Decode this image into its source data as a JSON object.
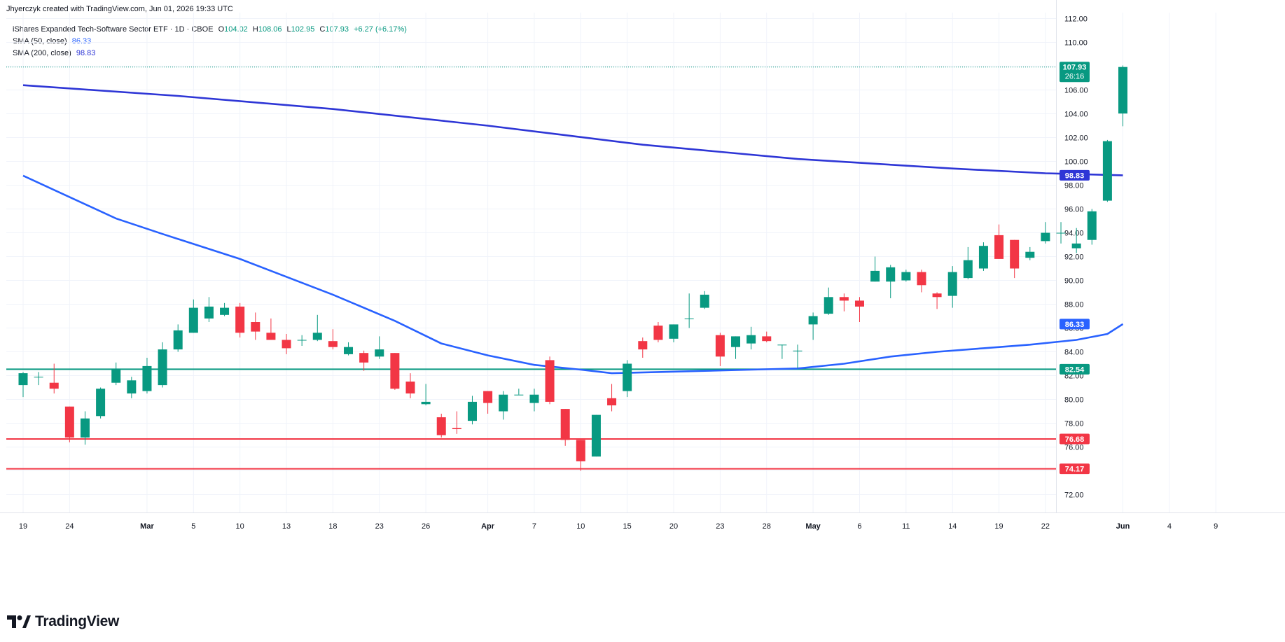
{
  "header": {
    "created_by": "Jhyerczyk created with TradingView.com, Jun 01, 2026 19:33 UTC"
  },
  "legend": {
    "symbol": "iShares Expanded Tech-Software Sector ETF · 1D · CBOE",
    "o_label": "O",
    "o_value": "104.02",
    "h_label": "H",
    "h_value": "108.06",
    "l_label": "L",
    "l_value": "102.95",
    "c_label": "C",
    "c_value": "107.93",
    "change": "+6.27 (+6.17%)",
    "sma50_label": "SMA (50, close)",
    "sma50_value": "86.33",
    "sma200_label": "SMA (200, close)",
    "sma200_value": "98.83"
  },
  "brand": {
    "name": "TradingView"
  },
  "colors": {
    "up": "#089981",
    "down": "#f23645",
    "sma50": "#2962ff",
    "sma200": "#2e36d6",
    "hline_green": "#089981",
    "hline_red": "#f23645",
    "grid": "#f0f3fa"
  },
  "chart_data": {
    "type": "candlestick",
    "ylim": [
      70.5,
      112.5
    ],
    "y_ticks": [
      "112.00",
      "110.00",
      "108.00",
      "106.00",
      "104.00",
      "102.00",
      "100.00",
      "98.00",
      "96.00",
      "94.00",
      "92.00",
      "90.00",
      "88.00",
      "86.00",
      "84.00",
      "82.00",
      "80.00",
      "78.00",
      "76.00",
      "74.00",
      "72.00"
    ],
    "x_ticks": [
      {
        "label": "19",
        "i": 0
      },
      {
        "label": "24",
        "i": 3
      },
      {
        "label": "Mar",
        "i": 8
      },
      {
        "label": "5",
        "i": 11
      },
      {
        "label": "10",
        "i": 14
      },
      {
        "label": "13",
        "i": 17
      },
      {
        "label": "18",
        "i": 20
      },
      {
        "label": "23",
        "i": 23
      },
      {
        "label": "26",
        "i": 26
      },
      {
        "label": "Apr",
        "i": 30
      },
      {
        "label": "7",
        "i": 33
      },
      {
        "label": "10",
        "i": 36
      },
      {
        "label": "15",
        "i": 39
      },
      {
        "label": "20",
        "i": 42
      },
      {
        "label": "23",
        "i": 45
      },
      {
        "label": "28",
        "i": 48
      },
      {
        "label": "May",
        "i": 51
      },
      {
        "label": "6",
        "i": 54
      },
      {
        "label": "11",
        "i": 57
      },
      {
        "label": "14",
        "i": 60
      },
      {
        "label": "19",
        "i": 63
      },
      {
        "label": "22",
        "i": 66
      },
      {
        "label": "Jun",
        "i": 71
      },
      {
        "label": "4",
        "i": 74
      },
      {
        "label": "9",
        "i": 77
      }
    ],
    "candles": [
      {
        "o": 81.2,
        "h": 82.3,
        "l": 80.2,
        "c": 82.2
      },
      {
        "o": 81.9,
        "h": 82.3,
        "l": 81.2,
        "c": 81.9
      },
      {
        "o": 81.4,
        "h": 83.0,
        "l": 80.5,
        "c": 80.9
      },
      {
        "o": 79.4,
        "h": 79.4,
        "l": 76.4,
        "c": 76.8
      },
      {
        "o": 76.8,
        "h": 79.0,
        "l": 76.2,
        "c": 78.4
      },
      {
        "o": 78.6,
        "h": 81.0,
        "l": 78.4,
        "c": 80.9
      },
      {
        "o": 81.4,
        "h": 83.1,
        "l": 81.2,
        "c": 82.5
      },
      {
        "o": 80.5,
        "h": 81.9,
        "l": 80.1,
        "c": 81.6
      },
      {
        "o": 80.7,
        "h": 83.5,
        "l": 80.5,
        "c": 82.8
      },
      {
        "o": 81.2,
        "h": 84.8,
        "l": 81.0,
        "c": 84.2
      },
      {
        "o": 84.2,
        "h": 86.3,
        "l": 84.0,
        "c": 85.8
      },
      {
        "o": 85.6,
        "h": 88.4,
        "l": 85.6,
        "c": 87.7
      },
      {
        "o": 86.8,
        "h": 88.6,
        "l": 86.5,
        "c": 87.8
      },
      {
        "o": 87.1,
        "h": 88.1,
        "l": 87.0,
        "c": 87.7
      },
      {
        "o": 87.8,
        "h": 88.1,
        "l": 85.2,
        "c": 85.6
      },
      {
        "o": 86.5,
        "h": 87.3,
        "l": 85.0,
        "c": 85.7
      },
      {
        "o": 85.6,
        "h": 86.8,
        "l": 85.0,
        "c": 85.0
      },
      {
        "o": 85.0,
        "h": 85.5,
        "l": 83.8,
        "c": 84.3
      },
      {
        "o": 85.0,
        "h": 85.4,
        "l": 84.5,
        "c": 85.0
      },
      {
        "o": 85.0,
        "h": 87.1,
        "l": 84.9,
        "c": 85.6
      },
      {
        "o": 84.9,
        "h": 85.9,
        "l": 84.2,
        "c": 84.4
      },
      {
        "o": 83.8,
        "h": 84.8,
        "l": 83.7,
        "c": 84.4
      },
      {
        "o": 83.9,
        "h": 84.1,
        "l": 82.4,
        "c": 83.1
      },
      {
        "o": 83.6,
        "h": 85.3,
        "l": 83.4,
        "c": 84.2
      },
      {
        "o": 83.9,
        "h": 83.9,
        "l": 80.8,
        "c": 80.9
      },
      {
        "o": 81.5,
        "h": 82.2,
        "l": 80.1,
        "c": 80.5
      },
      {
        "o": 79.6,
        "h": 81.3,
        "l": 79.5,
        "c": 79.8
      },
      {
        "o": 78.5,
        "h": 78.8,
        "l": 76.8,
        "c": 77.0
      },
      {
        "o": 77.6,
        "h": 79.0,
        "l": 77.1,
        "c": 77.5
      },
      {
        "o": 78.2,
        "h": 80.3,
        "l": 77.9,
        "c": 79.8
      },
      {
        "o": 80.7,
        "h": 80.7,
        "l": 78.8,
        "c": 79.7
      },
      {
        "o": 79.0,
        "h": 80.7,
        "l": 78.3,
        "c": 80.4
      },
      {
        "o": 80.4,
        "h": 80.9,
        "l": 80.4,
        "c": 80.4
      },
      {
        "o": 79.7,
        "h": 80.9,
        "l": 79.0,
        "c": 80.4
      },
      {
        "o": 83.3,
        "h": 83.6,
        "l": 79.6,
        "c": 79.8
      },
      {
        "o": 79.2,
        "h": 79.2,
        "l": 76.1,
        "c": 76.6
      },
      {
        "o": 76.6,
        "h": 76.6,
        "l": 74.0,
        "c": 74.8
      },
      {
        "o": 75.2,
        "h": 78.7,
        "l": 75.2,
        "c": 78.7
      },
      {
        "o": 80.1,
        "h": 81.3,
        "l": 79.0,
        "c": 79.5
      },
      {
        "o": 80.7,
        "h": 83.3,
        "l": 80.2,
        "c": 83.0
      },
      {
        "o": 84.9,
        "h": 85.2,
        "l": 83.5,
        "c": 84.2
      },
      {
        "o": 86.2,
        "h": 86.5,
        "l": 84.8,
        "c": 85.0
      },
      {
        "o": 85.1,
        "h": 86.3,
        "l": 84.8,
        "c": 86.3
      },
      {
        "o": 86.8,
        "h": 88.9,
        "l": 86.0,
        "c": 86.8
      },
      {
        "o": 87.7,
        "h": 89.1,
        "l": 87.6,
        "c": 88.8
      },
      {
        "o": 85.4,
        "h": 85.6,
        "l": 82.8,
        "c": 83.6
      },
      {
        "o": 84.4,
        "h": 85.3,
        "l": 83.4,
        "c": 85.3
      },
      {
        "o": 84.7,
        "h": 86.1,
        "l": 84.2,
        "c": 85.4
      },
      {
        "o": 85.3,
        "h": 85.7,
        "l": 84.8,
        "c": 84.9
      },
      {
        "o": 84.6,
        "h": 84.6,
        "l": 83.4,
        "c": 84.6
      },
      {
        "o": 84.1,
        "h": 84.6,
        "l": 82.6,
        "c": 84.1
      },
      {
        "o": 86.3,
        "h": 87.3,
        "l": 85.0,
        "c": 87.0
      },
      {
        "o": 87.2,
        "h": 89.4,
        "l": 87.1,
        "c": 88.6
      },
      {
        "o": 88.6,
        "h": 88.9,
        "l": 87.4,
        "c": 88.3
      },
      {
        "o": 88.3,
        "h": 88.6,
        "l": 86.5,
        "c": 87.8
      },
      {
        "o": 89.9,
        "h": 92.0,
        "l": 89.9,
        "c": 90.8
      },
      {
        "o": 89.9,
        "h": 91.3,
        "l": 88.5,
        "c": 91.1
      },
      {
        "o": 90.0,
        "h": 90.9,
        "l": 89.9,
        "c": 90.7
      },
      {
        "o": 90.7,
        "h": 90.9,
        "l": 89.0,
        "c": 89.6
      },
      {
        "o": 88.9,
        "h": 89.0,
        "l": 87.6,
        "c": 88.6
      },
      {
        "o": 88.7,
        "h": 91.2,
        "l": 87.7,
        "c": 90.7
      },
      {
        "o": 90.2,
        "h": 92.8,
        "l": 90.1,
        "c": 91.7
      },
      {
        "o": 91.0,
        "h": 93.2,
        "l": 90.8,
        "c": 92.9
      },
      {
        "o": 93.8,
        "h": 94.7,
        "l": 91.8,
        "c": 91.8
      },
      {
        "o": 93.4,
        "h": 93.4,
        "l": 90.2,
        "c": 91.0
      },
      {
        "o": 91.9,
        "h": 92.8,
        "l": 91.7,
        "c": 92.4
      },
      {
        "o": 93.3,
        "h": 94.9,
        "l": 93.1,
        "c": 94.0
      },
      {
        "o": 94.0,
        "h": 94.9,
        "l": 93.1,
        "c": 94.0
      },
      {
        "o": 92.7,
        "h": 94.4,
        "l": 92.3,
        "c": 93.1
      },
      {
        "o": 93.4,
        "h": 96.0,
        "l": 93.0,
        "c": 95.8
      },
      {
        "o": 96.7,
        "h": 101.8,
        "l": 96.6,
        "c": 101.7
      },
      {
        "o": 104.02,
        "h": 108.06,
        "l": 102.95,
        "c": 107.93
      }
    ],
    "sma50": [
      {
        "i": 0,
        "v": 98.8
      },
      {
        "i": 2,
        "v": 97.6
      },
      {
        "i": 4,
        "v": 96.4
      },
      {
        "i": 6,
        "v": 95.2
      },
      {
        "i": 9,
        "v": 93.9
      },
      {
        "i": 14,
        "v": 91.8
      },
      {
        "i": 20,
        "v": 88.8
      },
      {
        "i": 24,
        "v": 86.6
      },
      {
        "i": 27,
        "v": 84.7
      },
      {
        "i": 30,
        "v": 83.7
      },
      {
        "i": 33,
        "v": 82.9
      },
      {
        "i": 36,
        "v": 82.5
      },
      {
        "i": 38,
        "v": 82.2
      },
      {
        "i": 41,
        "v": 82.3
      },
      {
        "i": 44,
        "v": 82.4
      },
      {
        "i": 47,
        "v": 82.5
      },
      {
        "i": 50,
        "v": 82.6
      },
      {
        "i": 53,
        "v": 83.0
      },
      {
        "i": 56,
        "v": 83.6
      },
      {
        "i": 59,
        "v": 84.0
      },
      {
        "i": 62,
        "v": 84.3
      },
      {
        "i": 65,
        "v": 84.6
      },
      {
        "i": 68,
        "v": 85.0
      },
      {
        "i": 70,
        "v": 85.5
      },
      {
        "i": 71,
        "v": 86.33
      }
    ],
    "sma200": [
      {
        "i": 0,
        "v": 106.4
      },
      {
        "i": 10,
        "v": 105.5
      },
      {
        "i": 20,
        "v": 104.4
      },
      {
        "i": 30,
        "v": 103.0
      },
      {
        "i": 35,
        "v": 102.2
      },
      {
        "i": 40,
        "v": 101.4
      },
      {
        "i": 50,
        "v": 100.2
      },
      {
        "i": 60,
        "v": 99.4
      },
      {
        "i": 66,
        "v": 99.0
      },
      {
        "i": 71,
        "v": 98.83
      }
    ],
    "hlines": [
      {
        "value": 82.54,
        "label": "82.54",
        "kind": "support-green"
      },
      {
        "value": 76.68,
        "label": "76.68",
        "kind": "support-red"
      },
      {
        "value": 74.17,
        "label": "74.17",
        "kind": "support-red"
      }
    ],
    "last_price": {
      "value": 107.93,
      "label": "107.93",
      "countdown": "26:16"
    },
    "sma_badges": [
      {
        "value": 98.83,
        "label": "98.83",
        "series": "sma200"
      },
      {
        "value": 86.33,
        "label": "86.33",
        "series": "sma50"
      }
    ]
  }
}
